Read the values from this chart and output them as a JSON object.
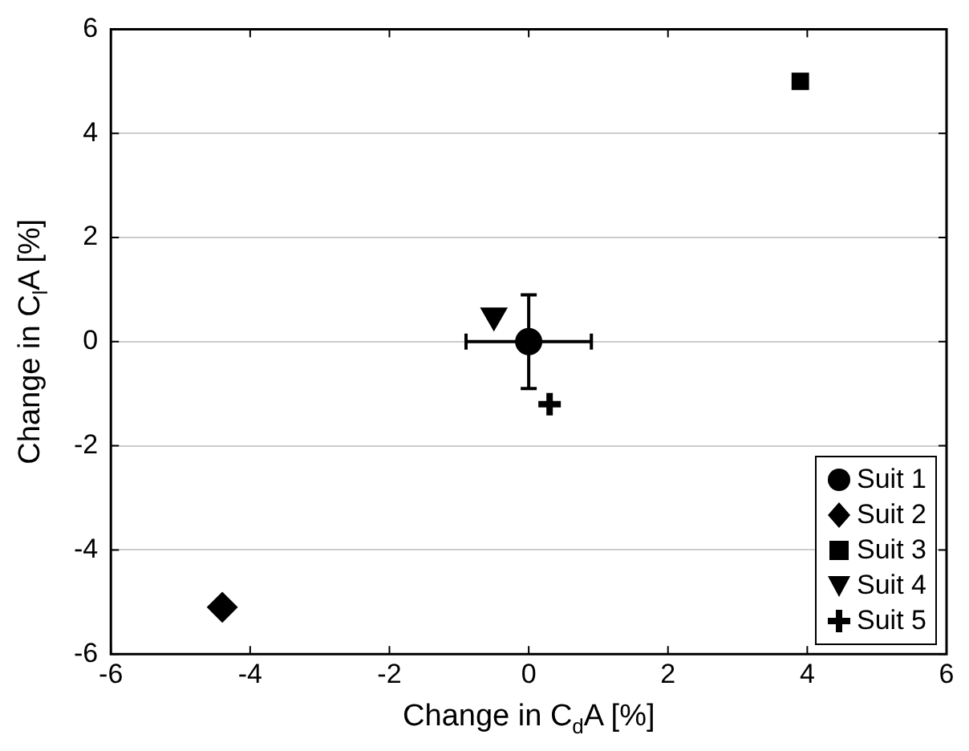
{
  "chart_data": {
    "type": "scatter",
    "xlabel": "Change in C$_{d}$A [%]",
    "ylabel": "Change in C$_{l}$A [%]",
    "xlim": [
      -6,
      6
    ],
    "xticks": [
      -6,
      -4,
      -2,
      0,
      2,
      4,
      6
    ],
    "ylim": [
      -6,
      6
    ],
    "yticks": [
      -6,
      -4,
      -2,
      0,
      2,
      4,
      6
    ],
    "grid": "y",
    "legend": "bottom right",
    "series": [
      {
        "name": "Suit 1",
        "color": "#000000",
        "marker": "circle",
        "x": [
          0
        ],
        "values": [
          0
        ],
        "errors": [
          0.9
        ],
        "xerrors": [
          0.9
        ]
      },
      {
        "name": "Suit 2",
        "color": "#000000",
        "marker": "diamond",
        "x": [
          -4.4
        ],
        "values": [
          -5.1
        ]
      },
      {
        "name": "Suit 3",
        "color": "#000000",
        "marker": "square",
        "x": [
          3.9
        ],
        "values": [
          5
        ]
      },
      {
        "name": "Suit 4",
        "color": "#000000",
        "marker": "triangle",
        "x": [
          -0.5
        ],
        "values": [
          0.5
        ]
      },
      {
        "name": "Suit 5",
        "color": "#000000",
        "marker": "cross",
        "x": [
          0.3
        ],
        "values": [
          -1.2
        ]
      }
    ]
  }
}
